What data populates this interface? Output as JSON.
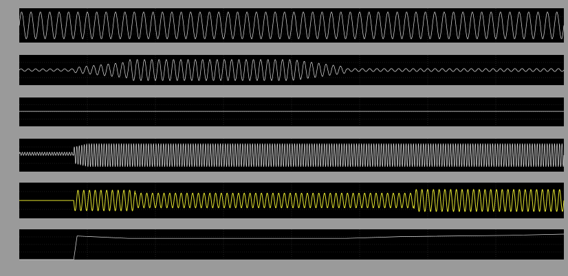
{
  "window": {
    "background": "#9a9a9a",
    "plot_background": "#000000",
    "axis_label_color": "#d0d0d0"
  },
  "chart_data": [
    {
      "type": "line",
      "title": "",
      "x_range": [
        0,
        0.8
      ],
      "y_range": [
        -1.2,
        1.2
      ],
      "grid": true,
      "series": [
        {
          "color": "#e6e6e6",
          "shape": "sine",
          "cycles": 58,
          "segments": [
            {
              "x": [
                0,
                0.8
              ],
              "amplitude": [
                0.95,
                0.95
              ],
              "offset": 0
            }
          ]
        }
      ]
    },
    {
      "type": "line",
      "title": "",
      "x_range": [
        0,
        0.8
      ],
      "y_range": [
        -1.2,
        1.2
      ],
      "grid": true,
      "series": [
        {
          "color": "#e6e6e6",
          "shape": "sine",
          "cycles": 75,
          "segments": [
            {
              "x": [
                0,
                0.08
              ],
              "amplitude": [
                0.1,
                0.1
              ],
              "offset": 0
            },
            {
              "x": [
                0.08,
                0.16
              ],
              "amplitude": [
                0.2,
                0.65
              ],
              "offset": 0
            },
            {
              "x": [
                0.16,
                0.4
              ],
              "amplitude": [
                0.85,
                0.85
              ],
              "offset": 0
            },
            {
              "x": [
                0.4,
                0.48
              ],
              "amplitude": [
                0.85,
                0.25
              ],
              "offset": 0
            },
            {
              "x": [
                0.48,
                0.8
              ],
              "amplitude": [
                0.12,
                0.12
              ],
              "offset": 0
            }
          ]
        }
      ]
    },
    {
      "type": "line",
      "title": "",
      "x_range": [
        0,
        0.8
      ],
      "y_range": [
        -1.2,
        1.2
      ],
      "grid": true,
      "series": [
        {
          "color": "#e6e6e6",
          "shape": "flat",
          "segments": [
            {
              "x": [
                0,
                0.8
              ],
              "amplitude": [
                0,
                0
              ],
              "offset": 0.05
            }
          ]
        }
      ]
    },
    {
      "type": "line",
      "title": "",
      "x_range": [
        0,
        0.8
      ],
      "y_range": [
        -1.2,
        1.2
      ],
      "grid": true,
      "series": [
        {
          "color": "#e6e6e6",
          "shape": "sine",
          "cycles": 220,
          "segments": [
            {
              "x": [
                0,
                0.08
              ],
              "amplitude": [
                0.12,
                0.12
              ],
              "offset": 0.1
            },
            {
              "x": [
                0.08,
                0.1
              ],
              "amplitude": [
                0.6,
                0.85
              ],
              "offset": 0
            },
            {
              "x": [
                0.1,
                0.8
              ],
              "amplitude": [
                0.85,
                0.85
              ],
              "offset": 0
            }
          ]
        }
      ]
    },
    {
      "type": "line",
      "title": "",
      "x_range": [
        0,
        0.8
      ],
      "y_range": [
        -1.2,
        1.2
      ],
      "grid": true,
      "series": [
        {
          "color": "#e8e830",
          "shape": "sine",
          "cycles": 95,
          "segments": [
            {
              "x": [
                0,
                0.08
              ],
              "amplitude": [
                0,
                0
              ],
              "offset": 0
            },
            {
              "x": [
                0.08,
                0.17
              ],
              "amplitude": [
                0.7,
                0.7
              ],
              "offset": 0
            },
            {
              "x": [
                0.17,
                0.48
              ],
              "amplitude": [
                0.5,
                0.5
              ],
              "offset": 0
            },
            {
              "x": [
                0.48,
                0.58
              ],
              "amplitude": [
                0.5,
                0.5
              ],
              "offset": 0
            },
            {
              "x": [
                0.58,
                0.8
              ],
              "amplitude": [
                0.75,
                0.75
              ],
              "offset": 0
            }
          ]
        }
      ]
    },
    {
      "type": "line",
      "title": "",
      "x_range": [
        0,
        0.8
      ],
      "y_range": [
        0,
        1
      ],
      "grid": true,
      "series": [
        {
          "color": "#e6e6e6",
          "shape": "points",
          "x": [
            0,
            0.08,
            0.085,
            0.16,
            0.48,
            0.56,
            0.72,
            0.8
          ],
          "y": [
            0,
            0,
            0.78,
            0.7,
            0.7,
            0.76,
            0.8,
            0.84
          ]
        }
      ]
    }
  ],
  "x_ticks": []
}
